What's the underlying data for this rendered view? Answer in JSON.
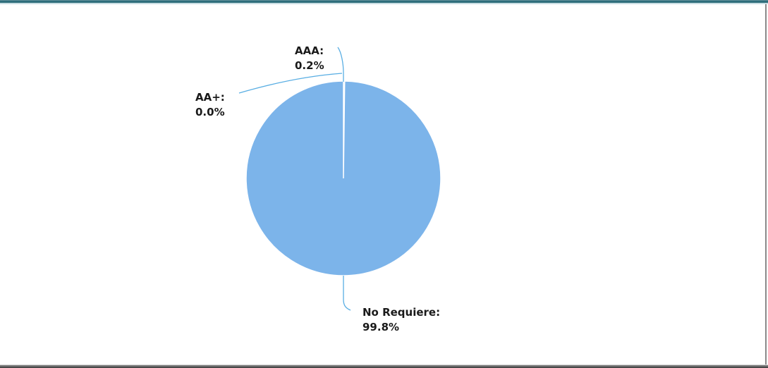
{
  "chart_data": {
    "type": "pie",
    "slices": [
      {
        "label": "AAA:",
        "display": "0.2%",
        "value": 0.2
      },
      {
        "label": "AA+:",
        "display": "0.0%",
        "value": 0.0
      },
      {
        "label": "No Requiere:",
        "display": "99.8%",
        "value": 99.8
      }
    ],
    "colors": {
      "slice_fill": "#7cb4ea",
      "slice_separator": "#ffffff",
      "leader_line": "#59aee3"
    }
  }
}
